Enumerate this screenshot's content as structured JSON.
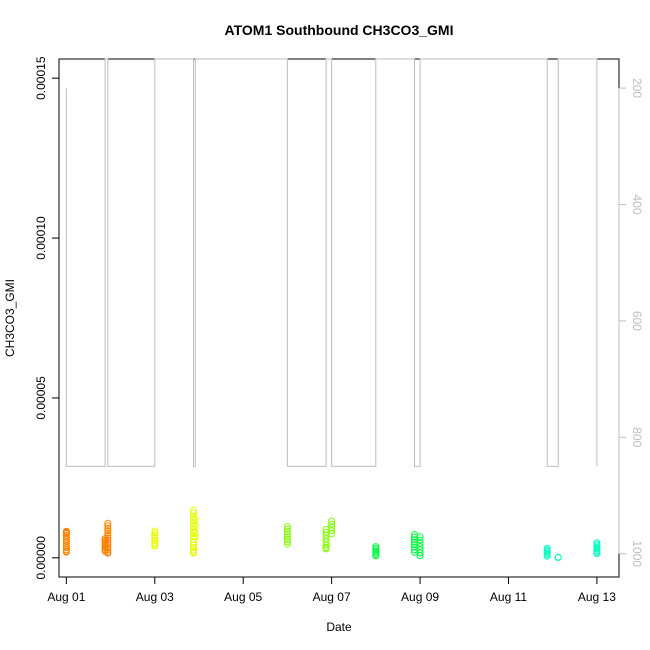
{
  "chart_data": {
    "type": "scatter",
    "title": "ATOM1 Southbound CH3CO3_GMI",
    "xlabel": "Date",
    "ylabel": "CH3CO3_GMI",
    "xlim": [
      "2016-07-31T20:00",
      "2016-08-13T12:00"
    ],
    "ylim": [
      -6e-06,
      0.000156
    ],
    "x_ticks": [
      "Aug 01",
      "Aug 03",
      "Aug 05",
      "Aug 07",
      "Aug 09",
      "Aug 11",
      "Aug 13"
    ],
    "y_ticks": [
      "0.00000",
      "0.00005",
      "0.00010",
      "0.00015"
    ],
    "y_right_ticks": [
      "200",
      "400",
      "600",
      "800",
      "1000"
    ],
    "y_right_range": [
      1040,
      150
    ],
    "y_right_color": "#bebebe",
    "marker": "open-circle",
    "grid": false,
    "series": [
      {
        "color": "#ff8000",
        "points": [
          [
            "2016-08-01T00:00",
            8e-06
          ],
          [
            "2016-08-01T00:00",
            8.3e-06
          ],
          [
            "2016-08-01T00:00",
            7.8e-06
          ],
          [
            "2016-08-01T00:00",
            8.2e-06
          ],
          [
            "2016-08-01T00:00",
            7.6e-06
          ],
          [
            "2016-08-01T00:00",
            7e-06
          ],
          [
            "2016-08-01T00:00",
            6.5e-06
          ],
          [
            "2016-08-01T00:00",
            5.8e-06
          ],
          [
            "2016-08-01T00:00",
            5.2e-06
          ],
          [
            "2016-08-01T00:00",
            4.5e-06
          ],
          [
            "2016-08-01T00:00",
            3.8e-06
          ],
          [
            "2016-08-01T00:00",
            3.2e-06
          ],
          [
            "2016-08-01T00:00",
            2.5e-06
          ],
          [
            "2016-08-01T00:00",
            2e-06
          ],
          [
            "2016-08-01T00:00",
            1.8e-06
          ],
          [
            "2016-08-01T21:00",
            6e-06
          ],
          [
            "2016-08-01T21:00",
            5.5e-06
          ],
          [
            "2016-08-01T21:00",
            5e-06
          ],
          [
            "2016-08-01T21:00",
            4.5e-06
          ],
          [
            "2016-08-01T21:00",
            4e-06
          ],
          [
            "2016-08-01T21:00",
            3.5e-06
          ],
          [
            "2016-08-01T21:00",
            3e-06
          ],
          [
            "2016-08-01T21:00",
            2.5e-06
          ],
          [
            "2016-08-01T21:00",
            2e-06
          ],
          [
            "2016-08-01T22:30",
            1.08e-05
          ],
          [
            "2016-08-01T22:30",
            1e-05
          ],
          [
            "2016-08-01T22:30",
            9.2e-06
          ],
          [
            "2016-08-01T22:30",
            8.5e-06
          ],
          [
            "2016-08-01T22:30",
            7.8e-06
          ],
          [
            "2016-08-01T22:30",
            7e-06
          ],
          [
            "2016-08-01T22:30",
            6.2e-06
          ],
          [
            "2016-08-01T22:30",
            5.5e-06
          ],
          [
            "2016-08-01T22:30",
            4.7e-06
          ],
          [
            "2016-08-01T22:30",
            4e-06
          ],
          [
            "2016-08-01T22:30",
            3.2e-06
          ],
          [
            "2016-08-01T22:30",
            2.5e-06
          ],
          [
            "2016-08-01T22:30",
            1.8e-06
          ],
          [
            "2016-08-01T22:30",
            1.4e-06
          ]
        ]
      },
      {
        "color": "#e6ff00",
        "points": [
          [
            "2016-08-03T00:00",
            8.4e-06
          ],
          [
            "2016-08-03T00:00",
            7.8e-06
          ],
          [
            "2016-08-03T00:00",
            7e-06
          ],
          [
            "2016-08-03T00:00",
            6.2e-06
          ],
          [
            "2016-08-03T00:00",
            5.5e-06
          ],
          [
            "2016-08-03T00:00",
            4.8e-06
          ],
          [
            "2016-08-03T00:00",
            4.2e-06
          ],
          [
            "2016-08-03T00:00",
            3.7e-06
          ],
          [
            "2016-08-03T21:00",
            1.48e-05
          ],
          [
            "2016-08-03T21:00",
            1.4e-05
          ],
          [
            "2016-08-03T21:00",
            1.28e-05
          ],
          [
            "2016-08-03T21:00",
            1.18e-05
          ],
          [
            "2016-08-03T21:00",
            1.08e-05
          ],
          [
            "2016-08-03T21:00",
            9.8e-06
          ],
          [
            "2016-08-03T21:00",
            8.8e-06
          ],
          [
            "2016-08-03T21:00",
            7.8e-06
          ],
          [
            "2016-08-03T21:00",
            6.8e-06
          ],
          [
            "2016-08-03T21:00",
            5.8e-06
          ],
          [
            "2016-08-03T21:00",
            4.8e-06
          ],
          [
            "2016-08-03T21:00",
            4e-06
          ],
          [
            "2016-08-03T21:00",
            3.2e-06
          ],
          [
            "2016-08-03T21:00",
            2.4e-06
          ],
          [
            "2016-08-03T21:00",
            1.8e-06
          ],
          [
            "2016-08-03T21:00",
            1.5e-06
          ],
          [
            "2016-08-03T22:00",
            1.2e-05
          ],
          [
            "2016-08-03T22:00",
            1e-05
          ],
          [
            "2016-08-03T22:00",
            8e-06
          ],
          [
            "2016-08-03T22:00",
            6.5e-06
          ]
        ]
      },
      {
        "color": "#80ff00",
        "points": [
          [
            "2016-08-06T00:00",
            9.8e-06
          ],
          [
            "2016-08-06T00:00",
            9e-06
          ],
          [
            "2016-08-06T00:00",
            8.2e-06
          ],
          [
            "2016-08-06T00:00",
            7.4e-06
          ],
          [
            "2016-08-06T00:00",
            6.6e-06
          ],
          [
            "2016-08-06T00:00",
            5.8e-06
          ],
          [
            "2016-08-06T00:00",
            5e-06
          ],
          [
            "2016-08-06T00:00",
            4.3e-06
          ],
          [
            "2016-08-06T21:00",
            8.9e-06
          ],
          [
            "2016-08-06T21:00",
            8e-06
          ],
          [
            "2016-08-06T21:00",
            7e-06
          ],
          [
            "2016-08-06T21:00",
            6e-06
          ],
          [
            "2016-08-06T21:00",
            5e-06
          ],
          [
            "2016-08-06T21:00",
            4e-06
          ],
          [
            "2016-08-06T21:00",
            3.2e-06
          ],
          [
            "2016-08-06T21:00",
            2.8e-06
          ],
          [
            "2016-08-07T00:00",
            1.15e-05
          ],
          [
            "2016-08-07T00:00",
            1.05e-05
          ],
          [
            "2016-08-07T00:00",
            9.5e-06
          ],
          [
            "2016-08-07T00:00",
            8.5e-06
          ],
          [
            "2016-08-07T00:00",
            7.5e-06
          ]
        ]
      },
      {
        "color": "#00ff40",
        "points": [
          [
            "2016-08-08T00:00",
            3.5e-06
          ],
          [
            "2016-08-08T00:00",
            3e-06
          ],
          [
            "2016-08-08T00:00",
            2.5e-06
          ],
          [
            "2016-08-08T00:00",
            2e-06
          ],
          [
            "2016-08-08T00:00",
            1.5e-06
          ],
          [
            "2016-08-08T00:00",
            1e-06
          ],
          [
            "2016-08-08T00:00",
            6e-07
          ],
          [
            "2016-08-08T21:00",
            7.3e-06
          ],
          [
            "2016-08-08T21:00",
            6.5e-06
          ],
          [
            "2016-08-08T21:00",
            5.7e-06
          ],
          [
            "2016-08-08T21:00",
            4.9e-06
          ],
          [
            "2016-08-08T21:00",
            4.1e-06
          ],
          [
            "2016-08-08T21:00",
            3.3e-06
          ],
          [
            "2016-08-08T21:00",
            2.5e-06
          ],
          [
            "2016-08-08T21:00",
            1.7e-06
          ],
          [
            "2016-08-09T00:00",
            6.6e-06
          ],
          [
            "2016-08-09T00:00",
            5.5e-06
          ],
          [
            "2016-08-09T00:00",
            4.5e-06
          ],
          [
            "2016-08-09T00:00",
            3.5e-06
          ],
          [
            "2016-08-09T00:00",
            2.5e-06
          ],
          [
            "2016-08-09T00:00",
            1.5e-06
          ],
          [
            "2016-08-09T00:00",
            7e-07
          ]
        ]
      },
      {
        "color": "#00ffc0",
        "points": [
          [
            "2016-08-11T21:00",
            3e-06
          ],
          [
            "2016-08-11T21:00",
            2.5e-06
          ],
          [
            "2016-08-11T21:00",
            2e-06
          ],
          [
            "2016-08-11T21:00",
            1.5e-06
          ],
          [
            "2016-08-11T21:00",
            1e-06
          ],
          [
            "2016-08-11T21:00",
            5e-07
          ],
          [
            "2016-08-12T03:00",
            2e-07
          ],
          [
            "2016-08-12T03:00",
            1e-07
          ],
          [
            "2016-08-13T00:00",
            4.7e-06
          ],
          [
            "2016-08-13T00:00",
            4.2e-06
          ],
          [
            "2016-08-13T00:00",
            3.7e-06
          ],
          [
            "2016-08-13T00:00",
            3.2e-06
          ],
          [
            "2016-08-13T00:00",
            2.7e-06
          ],
          [
            "2016-08-13T00:00",
            2.2e-06
          ],
          [
            "2016-08-13T00:00",
            1.7e-06
          ],
          [
            "2016-08-13T00:00",
            1.3e-06
          ]
        ]
      }
    ],
    "pressure_line": {
      "color": "#bebebe",
      "points": [
        [
          "2016-08-01T00:00",
          200
        ],
        [
          "2016-08-01T00:00",
          850
        ],
        [
          "2016-08-01T21:00",
          850
        ],
        [
          "2016-08-01T21:00",
          150
        ],
        [
          "2016-08-01T22:30",
          150
        ],
        [
          "2016-08-01T22:30",
          850
        ],
        [
          "2016-08-03T00:00",
          850
        ],
        [
          "2016-08-03T00:00",
          150
        ],
        [
          "2016-08-03T21:00",
          150
        ],
        [
          "2016-08-03T21:00",
          850
        ],
        [
          "2016-08-03T22:00",
          850
        ],
        [
          "2016-08-03T22:00",
          150
        ],
        [
          "2016-08-06T00:00",
          150
        ],
        [
          "2016-08-06T00:00",
          850
        ],
        [
          "2016-08-06T21:00",
          850
        ],
        [
          "2016-08-06T21:00",
          150
        ],
        [
          "2016-08-07T00:00",
          150
        ],
        [
          "2016-08-07T00:00",
          850
        ],
        [
          "2016-08-08T00:00",
          850
        ],
        [
          "2016-08-08T00:00",
          150
        ],
        [
          "2016-08-08T21:00",
          150
        ],
        [
          "2016-08-08T21:00",
          850
        ],
        [
          "2016-08-09T00:00",
          850
        ],
        [
          "2016-08-09T00:00",
          150
        ],
        [
          "2016-08-11T21:00",
          150
        ],
        [
          "2016-08-11T21:00",
          850
        ],
        [
          "2016-08-12T03:00",
          850
        ],
        [
          "2016-08-12T03:00",
          150
        ],
        [
          "2016-08-13T00:00",
          150
        ],
        [
          "2016-08-13T00:00",
          850
        ]
      ]
    }
  }
}
